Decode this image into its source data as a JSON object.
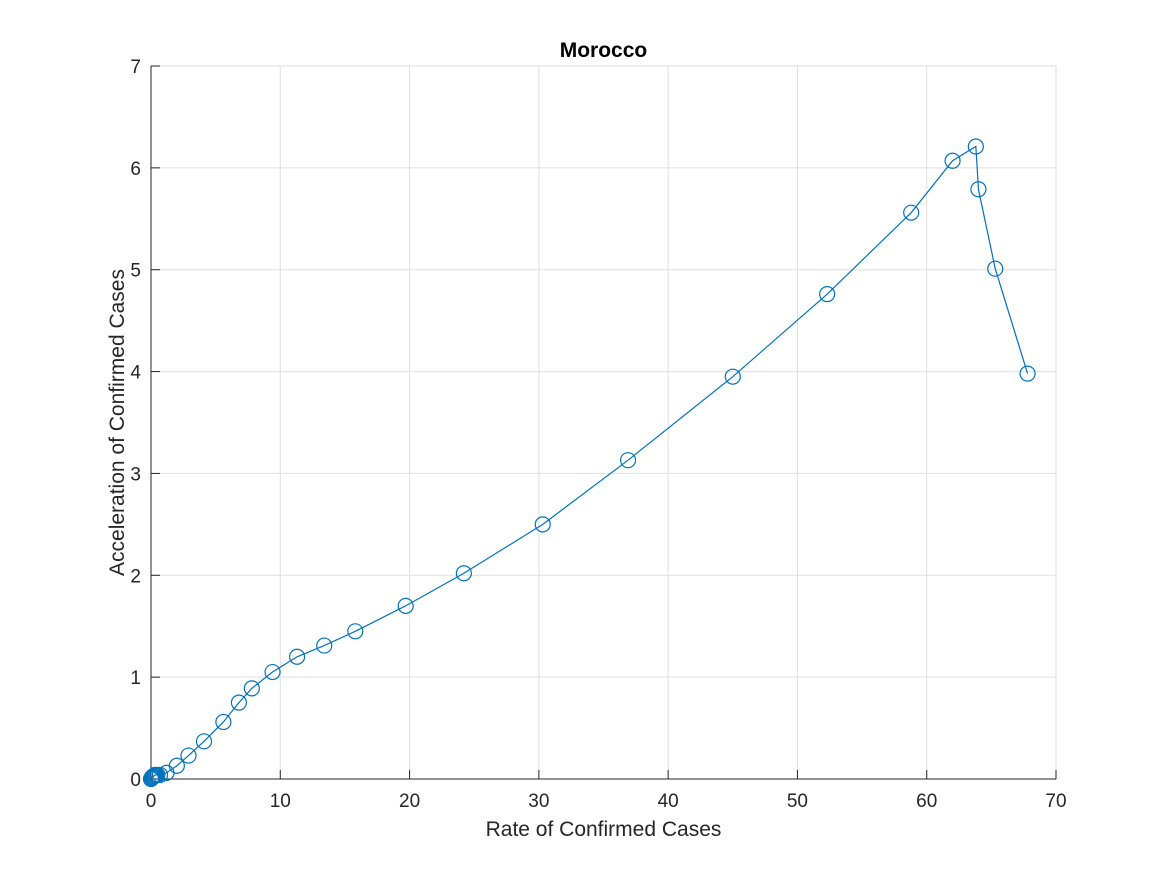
{
  "chart_data": {
    "type": "line",
    "title": "Morocco",
    "xlabel": "Rate of Confirmed Cases",
    "ylabel": "Acceleration of Confirmed Cases",
    "xlim": [
      0,
      70
    ],
    "ylim": [
      0,
      7
    ],
    "xticks": [
      0,
      10,
      20,
      30,
      40,
      50,
      60,
      70
    ],
    "yticks": [
      0,
      1,
      2,
      3,
      4,
      5,
      6,
      7
    ],
    "grid": true,
    "marker": "circle",
    "series": [
      {
        "color": "#0072bd",
        "x": [
          0,
          0.05,
          0.1,
          0.15,
          0.2,
          0.25,
          0.3,
          0.35,
          0.4,
          0.5,
          0.7,
          1.2,
          2.0,
          2.9,
          4.1,
          5.6,
          6.8,
          7.8,
          9.4,
          11.3,
          13.4,
          15.8,
          19.7,
          24.2,
          30.3,
          36.9,
          45.0,
          52.3,
          58.8,
          62.0,
          63.8,
          64.0,
          65.3,
          67.8
        ],
        "y": [
          0,
          0.01,
          0.02,
          0.02,
          0.03,
          0.03,
          0.04,
          0.04,
          0.04,
          0.04,
          0.04,
          0.06,
          0.13,
          0.23,
          0.37,
          0.56,
          0.75,
          0.89,
          1.05,
          1.2,
          1.31,
          1.45,
          1.7,
          2.02,
          2.5,
          3.13,
          3.95,
          4.76,
          5.56,
          6.07,
          6.21,
          5.79,
          5.01,
          3.98
        ]
      }
    ]
  }
}
